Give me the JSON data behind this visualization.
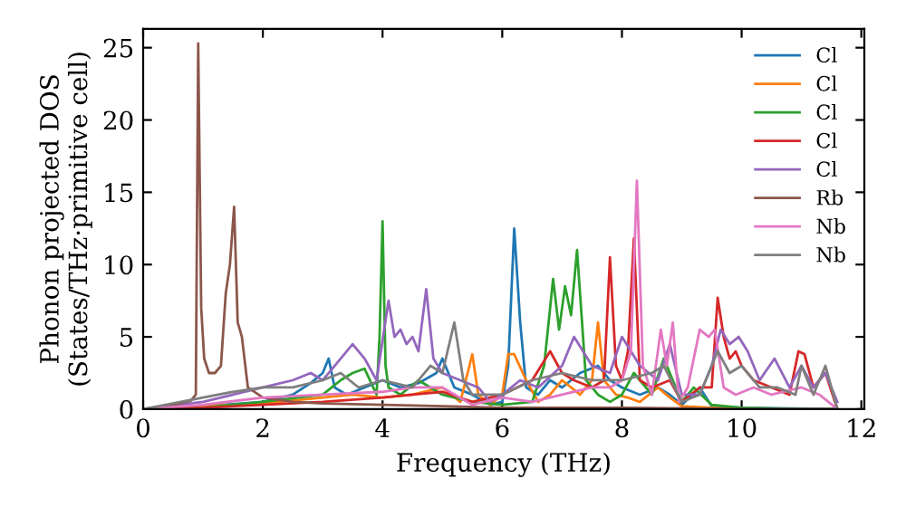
{
  "chart_data": {
    "type": "line",
    "xlabel": "Frequency (THz)",
    "ylabel": "Phonon projected DOS\n(States/THz·primitive cell)",
    "xlim": [
      0,
      12.05
    ],
    "ylim": [
      0,
      26.3
    ],
    "xticks": [
      0,
      2,
      4,
      6,
      8,
      10,
      12
    ],
    "yticks": [
      0,
      5,
      10,
      15,
      20,
      25
    ],
    "legend": "top right",
    "grid": false,
    "marker": "none",
    "line_style": "solid",
    "series": [
      {
        "name": "Cl",
        "color": "#1f77b4",
        "x": [
          0,
          1,
          2,
          2.5,
          2.8,
          3.0,
          3.1,
          3.2,
          3.4,
          3.7,
          4.0,
          4.3,
          4.6,
          4.9,
          5.0,
          5.2,
          5.5,
          5.8,
          6.0,
          6.1,
          6.2,
          6.3,
          6.4,
          6.6,
          6.8,
          7.0,
          7.3,
          7.6,
          7.8,
          8.0,
          8.3,
          8.6,
          8.8,
          9.0,
          9.3,
          9.5,
          10,
          11.6
        ],
        "values": [
          0,
          0.2,
          0.5,
          1.0,
          1.8,
          2.5,
          3.5,
          1.5,
          1.0,
          1.5,
          2.0,
          1.5,
          1.8,
          2.5,
          3.5,
          1.5,
          1.0,
          0.3,
          0.5,
          3,
          12.5,
          6,
          1.5,
          1.0,
          2.0,
          1.5,
          2.5,
          3.0,
          2.0,
          1.5,
          1.0,
          1.5,
          1.0,
          0.3,
          1.5,
          0.2,
          0.1,
          0
        ]
      },
      {
        "name": "Cl",
        "color": "#ff7f0e",
        "x": [
          0,
          1,
          2,
          3,
          3.5,
          4.0,
          4.5,
          5.0,
          5.3,
          5.5,
          5.6,
          5.8,
          6.0,
          6.1,
          6.2,
          6.4,
          6.6,
          6.8,
          7.0,
          7.3,
          7.5,
          7.6,
          7.7,
          7.9,
          8.1,
          8.3,
          8.6,
          8.8,
          9.0,
          9.5,
          10
        ],
        "values": [
          0,
          0.2,
          0.4,
          0.8,
          1.0,
          0.8,
          1.0,
          1.5,
          0.5,
          3.8,
          1.0,
          0.3,
          1.0,
          3.8,
          3.8,
          2.0,
          0.5,
          1.0,
          2.0,
          1.0,
          2.0,
          6.0,
          2.0,
          1.0,
          0.8,
          0.5,
          1.5,
          0.8,
          0.2,
          0.1,
          0
        ]
      },
      {
        "name": "Cl",
        "color": "#2ca02c",
        "x": [
          0,
          1,
          2,
          3,
          3.3,
          3.5,
          3.7,
          3.9,
          3.95,
          4.0,
          4.05,
          4.1,
          4.3,
          4.6,
          5.0,
          5.5,
          6.0,
          6.5,
          6.7,
          6.85,
          6.95,
          7.05,
          7.15,
          7.25,
          7.3,
          7.4,
          7.6,
          7.8,
          8.0,
          8.2,
          8.5,
          8.7,
          9.0,
          9.2,
          9.5,
          10,
          11,
          11.6
        ],
        "values": [
          0,
          0.1,
          0.5,
          1.0,
          2.0,
          2.5,
          2.8,
          1.0,
          5,
          13,
          3,
          1.5,
          1.0,
          2.0,
          1.0,
          0.5,
          0.3,
          0.5,
          3,
          9,
          5.5,
          8.5,
          6.5,
          11,
          8,
          2,
          1.0,
          0.5,
          1.0,
          2.5,
          1.0,
          3.5,
          0.5,
          1.5,
          0.3,
          0.1,
          0,
          0
        ]
      },
      {
        "name": "Cl",
        "color": "#d62728",
        "x": [
          0,
          1,
          2,
          3,
          4,
          4.5,
          5,
          5.5,
          6,
          6.5,
          6.8,
          7.0,
          7.2,
          7.5,
          7.7,
          7.8,
          7.9,
          8.0,
          8.1,
          8.2,
          8.3,
          8.5,
          8.8,
          9.0,
          9.3,
          9.5,
          9.6,
          9.7,
          9.8,
          9.9,
          10.0,
          10.2,
          10.5,
          10.8,
          10.95,
          11.05,
          11.2,
          11.4,
          11.6
        ],
        "values": [
          0,
          0.1,
          0.3,
          0.5,
          0.8,
          1.0,
          1.2,
          0.5,
          1.0,
          2.0,
          4.0,
          2.5,
          2.0,
          1.5,
          2.0,
          10.5,
          3,
          2,
          4,
          11.8,
          2,
          1.5,
          2,
          0.5,
          1.5,
          1.5,
          7.7,
          5,
          3.5,
          4,
          3,
          2,
          1.5,
          1.0,
          4,
          3.8,
          1.5,
          2.5,
          0
        ]
      },
      {
        "name": "Cl",
        "color": "#9467bd",
        "x": [
          0,
          1,
          1.5,
          2,
          2.5,
          2.8,
          3.0,
          3.2,
          3.5,
          3.7,
          3.9,
          4.1,
          4.2,
          4.3,
          4.4,
          4.5,
          4.6,
          4.73,
          4.85,
          5.0,
          5.3,
          5.6,
          5.8,
          6.0,
          6.3,
          6.6,
          7.0,
          7.2,
          7.5,
          7.8,
          8.0,
          8.3,
          8.6,
          8.8,
          9.0,
          9.3,
          9.5,
          9.65,
          9.8,
          9.95,
          10.1,
          10.3,
          10.55,
          10.8,
          11.0,
          11.2,
          11.4,
          11.6
        ],
        "values": [
          0,
          0.5,
          1.0,
          1.5,
          2.0,
          2.5,
          2.0,
          3.0,
          4.5,
          3.5,
          2.0,
          7.5,
          5.0,
          5.5,
          4.5,
          5.0,
          4.0,
          8.3,
          3.5,
          2.5,
          2.0,
          1.5,
          0.5,
          1.0,
          2.0,
          1.5,
          3.0,
          5.0,
          3.0,
          2.5,
          5.0,
          3.0,
          2.0,
          4.5,
          1.0,
          1.0,
          3.0,
          5.5,
          4.5,
          5.0,
          4.0,
          2.0,
          3.5,
          1.5,
          3.0,
          1.5,
          2.5,
          0.5
        ]
      },
      {
        "name": "Rb",
        "color": "#8c564b",
        "x": [
          0,
          0.5,
          0.8,
          0.88,
          0.92,
          0.97,
          1.02,
          1.1,
          1.2,
          1.3,
          1.38,
          1.45,
          1.52,
          1.58,
          1.65,
          1.75,
          2.0,
          2.5,
          3.0,
          4.0,
          5.0,
          6.0,
          8.0,
          10.0,
          11.6
        ],
        "values": [
          0,
          0.3,
          0.6,
          1.0,
          25.3,
          7.0,
          3.5,
          2.5,
          2.5,
          3.0,
          8.0,
          10.0,
          14.0,
          6.0,
          5.0,
          1.5,
          0.8,
          0.5,
          0.4,
          0.3,
          0.2,
          0.1,
          0.1,
          0,
          0
        ]
      },
      {
        "name": "Nb",
        "color": "#e377c2",
        "x": [
          0,
          1,
          2,
          3,
          4,
          4.5,
          5,
          5.5,
          6,
          6.5,
          7,
          7.5,
          7.8,
          8.0,
          8.15,
          8.25,
          8.35,
          8.5,
          8.65,
          8.75,
          8.85,
          8.95,
          9.1,
          9.3,
          9.45,
          9.55,
          9.7,
          9.9,
          10.2,
          10.5,
          11.0,
          11.3,
          11.6
        ],
        "values": [
          0,
          0.3,
          0.8,
          1.0,
          1.2,
          1.5,
          1.5,
          0.3,
          0.8,
          0.5,
          1.0,
          1.5,
          1.5,
          2.0,
          4.0,
          15.8,
          3.0,
          1.0,
          5.5,
          3.0,
          6.0,
          0.5,
          1.5,
          5.5,
          5.0,
          5.5,
          1.5,
          1.0,
          1.5,
          1.0,
          1.5,
          1.0,
          0
        ]
      },
      {
        "name": "Nb",
        "color": "#7f7f7f",
        "x": [
          0,
          1,
          1.5,
          2,
          2.5,
          3.0,
          3.3,
          3.6,
          4.0,
          4.5,
          4.8,
          5.0,
          5.2,
          5.35,
          5.5,
          6.0,
          6.5,
          7.0,
          7.5,
          8.0,
          8.5,
          8.7,
          9.0,
          9.3,
          9.6,
          9.8,
          10.0,
          10.3,
          10.6,
          10.9,
          11.0,
          11.2,
          11.4,
          11.6
        ],
        "values": [
          0,
          0.8,
          1.2,
          1.5,
          1.5,
          2.0,
          2.5,
          1.5,
          2.0,
          1.5,
          3.0,
          2.5,
          6.0,
          2.0,
          1.0,
          1.0,
          2.0,
          2.5,
          2.0,
          2.0,
          2.5,
          3.0,
          0.5,
          1.0,
          4.0,
          2.5,
          3.0,
          1.5,
          1.5,
          1.0,
          3.0,
          1.0,
          3.0,
          0
        ]
      }
    ]
  }
}
